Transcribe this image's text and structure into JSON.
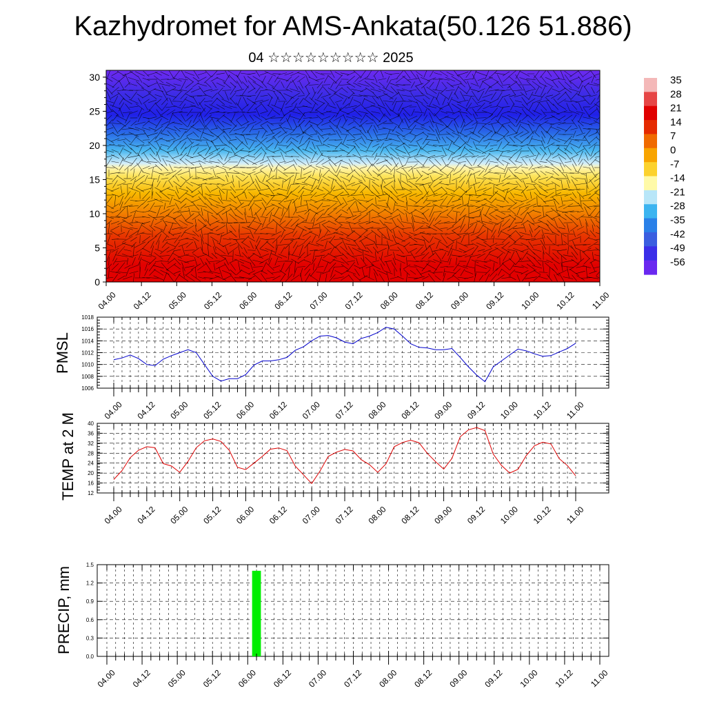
{
  "title": "Kazhydromet for AMS-Ankata(50.126 51.886)",
  "subtitle": "04 ☆☆☆☆☆☆☆☆☆ 2025",
  "time_labels": [
    "04.00",
    "04.12",
    "05.00",
    "05.12",
    "06.00",
    "06.12",
    "07.00",
    "07.12",
    "08.00",
    "08.12",
    "09.00",
    "09.12",
    "10.00",
    "10.12",
    "11.00"
  ],
  "colors": {
    "pmsl": "#0000cc",
    "temp": "#dd0000",
    "precip": "#00ee00"
  },
  "chart_data": [
    {
      "name": "cross-section",
      "type": "heatmap",
      "y_ticks": [
        0,
        5,
        10,
        15,
        20,
        25,
        30
      ],
      "ylim": [
        0,
        31
      ],
      "colorbar_labels": [
        "35",
        "28",
        "21",
        "14",
        "7",
        "0",
        "-7",
        "-14",
        "-21",
        "-28",
        "-35",
        "-42",
        "-49",
        "-56"
      ],
      "colorbar_colors": [
        "#f4b8b8",
        "#e64646",
        "#e00000",
        "#e52a00",
        "#f06a00",
        "#f8a400",
        "#fcd22e",
        "#fffaa8",
        "#b8e6f8",
        "#3cb4f0",
        "#2a80e8",
        "#3a5ee0",
        "#3a2ee8",
        "#6a28f0"
      ]
    },
    {
      "name": "PMSL",
      "type": "line",
      "ylabel": "PMSL",
      "ylim": [
        1006,
        1018
      ],
      "y_ticks": [
        1006,
        1008,
        1010,
        1012,
        1014,
        1016,
        1018
      ],
      "values": [
        1010.8,
        1011.1,
        1011.6,
        1011.0,
        1010.0,
        1009.8,
        1010.9,
        1011.5,
        1012.0,
        1012.5,
        1012.0,
        1010.0,
        1008.0,
        1007.2,
        1007.6,
        1007.6,
        1008.3,
        1009.9,
        1010.6,
        1010.6,
        1010.8,
        1011.2,
        1012.4,
        1013.0,
        1014.0,
        1014.8,
        1014.9,
        1014.5,
        1013.8,
        1013.5,
        1014.4,
        1014.8,
        1015.4,
        1016.3,
        1016.0,
        1014.8,
        1013.5,
        1012.9,
        1012.8,
        1012.5,
        1012.5,
        1012.7,
        1011.2,
        1009.6,
        1008.2,
        1007.1,
        1009.6,
        1010.6,
        1011.6,
        1012.6,
        1012.3,
        1011.8,
        1011.4,
        1011.5,
        1012.1,
        1012.7,
        1013.6
      ]
    },
    {
      "name": "TEMP at 2 M",
      "type": "line",
      "ylabel": "TEMP at 2 M",
      "ylim": [
        12,
        40
      ],
      "y_ticks": [
        12,
        16,
        20,
        24,
        28,
        32,
        36,
        40
      ],
      "values": [
        17.4,
        21.0,
        26.2,
        29.2,
        30.6,
        30.2,
        23.8,
        22.8,
        20.3,
        24.7,
        30.2,
        33.0,
        33.7,
        32.7,
        29.2,
        22.3,
        21.4,
        24.0,
        26.7,
        29.6,
        30.1,
        29.0,
        22.8,
        19.3,
        15.8,
        20.8,
        26.7,
        28.4,
        29.5,
        28.9,
        25.4,
        23.4,
        20.3,
        23.7,
        30.6,
        32.3,
        33.2,
        32.2,
        28.0,
        24.6,
        21.6,
        25.9,
        34.6,
        37.4,
        38.3,
        37.1,
        27.6,
        23.1,
        20.0,
        21.5,
        27.0,
        31.0,
        32.4,
        31.7,
        25.8,
        23.0,
        18.9
      ]
    },
    {
      "name": "PRECIP",
      "type": "bar",
      "ylabel": "PRECIP, mm",
      "ylim": [
        0,
        1.5
      ],
      "y_ticks": [
        "0.0",
        "0.3",
        "0.6",
        "0.9",
        "1.2",
        "1.5"
      ],
      "bars": [
        {
          "time": "06.03",
          "value": 1.4
        }
      ]
    }
  ]
}
